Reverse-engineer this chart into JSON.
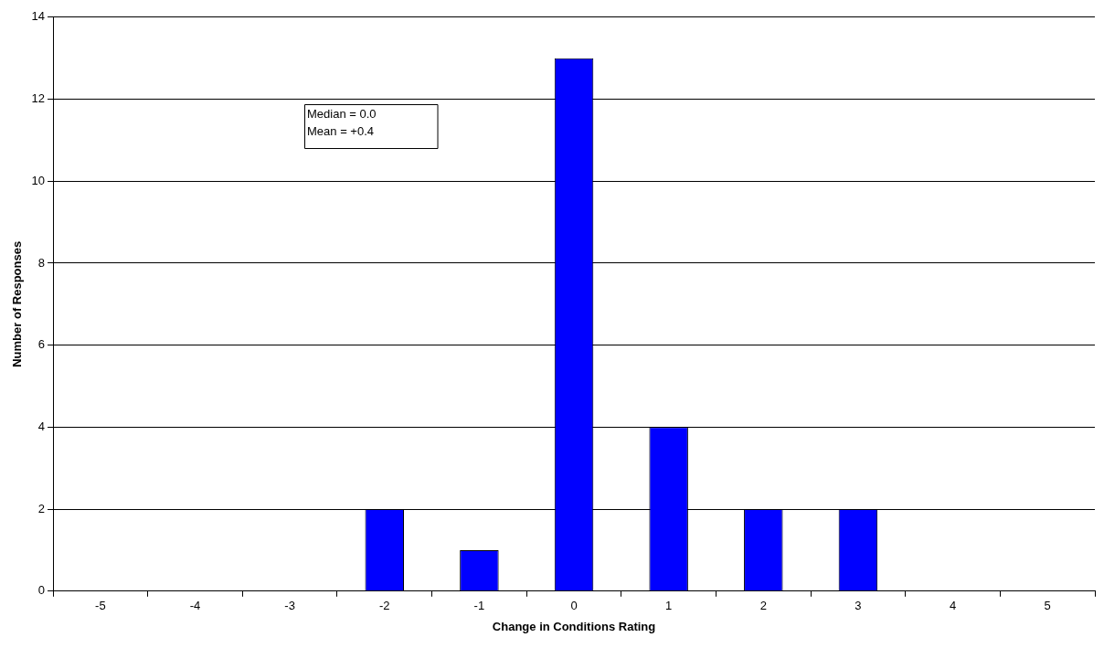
{
  "chart_data": {
    "type": "bar",
    "xlabel": "Change in Conditions Rating",
    "ylabel": "Number of Responses",
    "categories": [
      "-5",
      "-4",
      "-3",
      "-2",
      "-1",
      "0",
      "1",
      "2",
      "3",
      "4",
      "5"
    ],
    "values": [
      0,
      0,
      0,
      2,
      1,
      13,
      4,
      2,
      2,
      0,
      0
    ],
    "color": "#0000ff",
    "ylim": [
      0,
      14
    ],
    "yticks": [
      0,
      2,
      4,
      6,
      8,
      10,
      12,
      14
    ],
    "grid": "y",
    "legend": false,
    "annotations": [
      "Median = 0.0",
      "Mean = +0.4"
    ]
  }
}
